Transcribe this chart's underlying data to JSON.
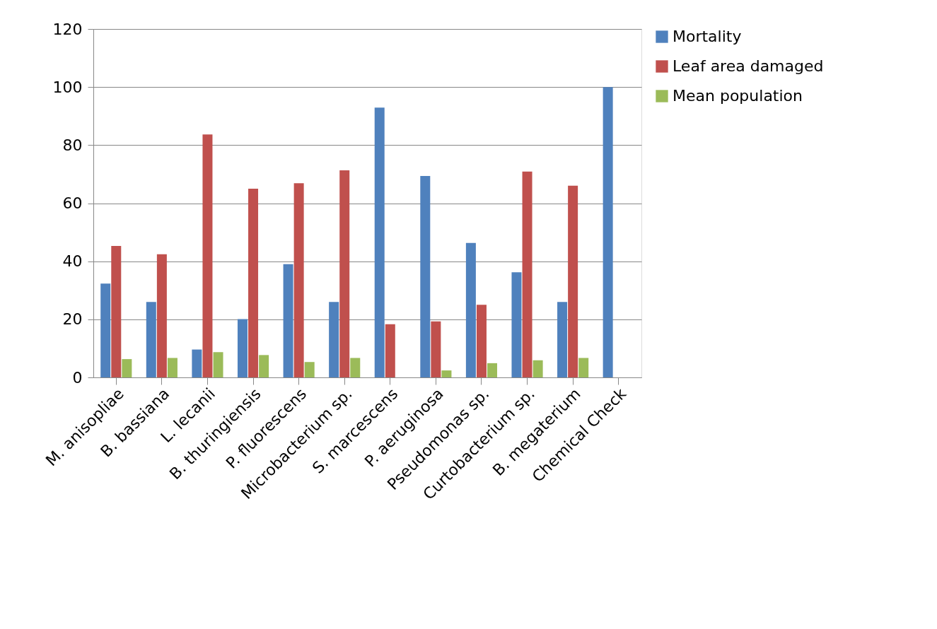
{
  "chart_data": {
    "type": "bar",
    "categories": [
      "M. anisopliae",
      "B. bassiana",
      "L. lecanii",
      "B. thuringiensis",
      "P. fluorescens",
      "Microbacterium sp.",
      "S. marcescens",
      "P. aeruginosa",
      "Pseudomonas sp.",
      "Curtobacterium sp.",
      "B. megaterium",
      "Chemical Check"
    ],
    "series": [
      {
        "name": "Mortality",
        "color": "#4f81bd",
        "values": [
          32.3,
          26,
          9.6,
          20.1,
          39,
          26,
          92.9,
          69.4,
          46.3,
          36.2,
          26,
          100
        ]
      },
      {
        "name": "Leaf area damaged",
        "color": "#c0504d",
        "values": [
          45.3,
          42.4,
          83.7,
          65,
          66.9,
          71.3,
          18.3,
          19.3,
          25,
          70.9,
          66,
          0
        ]
      },
      {
        "name": "Mean population",
        "color": "#9bbb59",
        "values": [
          6.3,
          6.7,
          8.7,
          7.7,
          5.3,
          6.7,
          0,
          2.4,
          4.9,
          5.9,
          6.7,
          0
        ]
      }
    ],
    "ylim": [
      0,
      120
    ],
    "yticks": [
      0,
      20,
      40,
      60,
      80,
      100,
      120
    ],
    "grid": "y",
    "legend": "right"
  }
}
